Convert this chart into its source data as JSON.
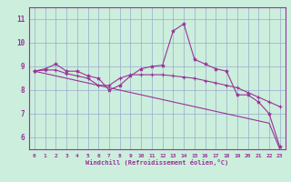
{
  "xlabel": "Windchill (Refroidissement éolien,°C)",
  "background_color": "#cceedd",
  "line_color": "#993399",
  "grid_color": "#99aacc",
  "x_ticks": [
    0,
    1,
    2,
    3,
    4,
    5,
    6,
    7,
    8,
    9,
    10,
    11,
    12,
    13,
    14,
    15,
    16,
    17,
    18,
    19,
    20,
    21,
    22,
    23
  ],
  "y_ticks": [
    6,
    7,
    8,
    9,
    10,
    11
  ],
  "xlim": [
    -0.5,
    23.5
  ],
  "ylim": [
    5.5,
    11.5
  ],
  "line1": [
    8.8,
    8.9,
    9.1,
    8.8,
    8.8,
    8.6,
    8.5,
    8.0,
    8.2,
    8.6,
    8.9,
    9.0,
    9.05,
    10.5,
    10.8,
    9.3,
    9.1,
    8.9,
    8.8,
    7.8,
    7.8,
    7.5,
    7.0,
    5.6
  ],
  "line2": [
    8.8,
    8.85,
    8.85,
    8.7,
    8.6,
    8.5,
    8.2,
    8.2,
    8.5,
    8.65,
    8.65,
    8.65,
    8.65,
    8.6,
    8.55,
    8.5,
    8.4,
    8.3,
    8.2,
    8.1,
    7.9,
    7.7,
    7.5,
    7.3
  ],
  "line3": [
    8.8,
    8.7,
    8.6,
    8.5,
    8.4,
    8.3,
    8.2,
    8.1,
    8.0,
    7.9,
    7.8,
    7.7,
    7.6,
    7.5,
    7.4,
    7.3,
    7.2,
    7.1,
    7.0,
    6.9,
    6.8,
    6.7,
    6.6,
    5.5
  ]
}
